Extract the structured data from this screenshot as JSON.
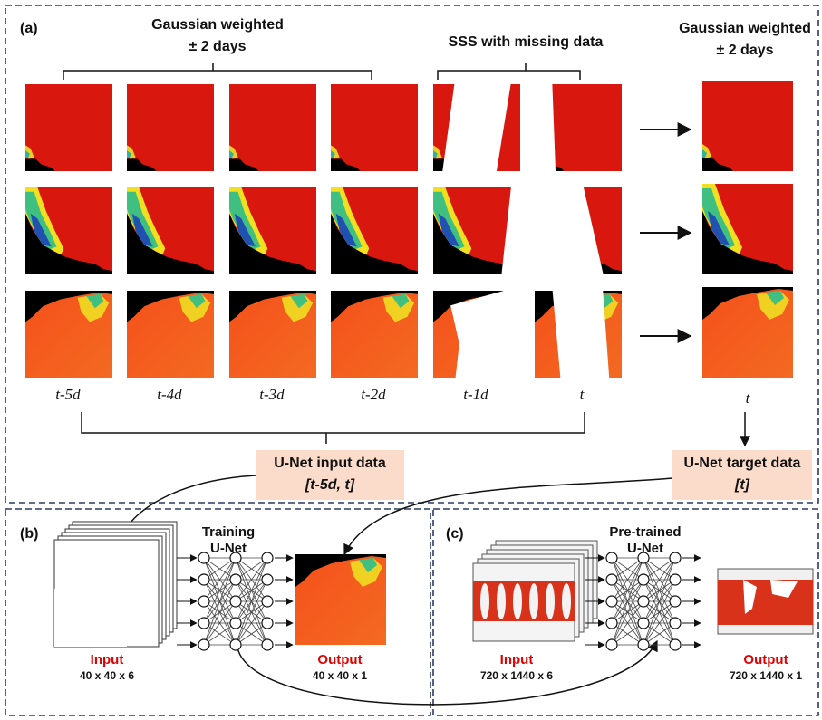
{
  "panel_a": {
    "label": "(a)",
    "left_header": {
      "line1": "Gaussian weighted",
      "line2": "± 2 days"
    },
    "middle_header": "SSS with missing data",
    "right_header": {
      "line1": "Gaussian weighted",
      "line2": "± 2 days"
    },
    "time_labels": [
      "t-5d",
      "t-4d",
      "t-3d",
      "t-2d",
      "t-1d",
      "t"
    ],
    "target_time_label": "t",
    "input_box": {
      "title": "U-Net input data",
      "range": "[t-5d, t]"
    },
    "target_box": {
      "title": "U-Net target data",
      "range": "[t]"
    }
  },
  "panel_b": {
    "label": "(b)",
    "network": {
      "line1": "Training",
      "line2": "U-Net"
    },
    "input": {
      "title": "Input",
      "size": "40 x 40 x 6"
    },
    "output": {
      "title": "Output",
      "size": "40 x  40 x 1"
    }
  },
  "panel_c": {
    "label": "(c)",
    "network": {
      "line1": "Pre-trained",
      "line2": "U-Net"
    },
    "input": {
      "title": "Input",
      "size": "720 x 1440 x 6"
    },
    "output": {
      "title": "Output",
      "size": "720 x 1440 x 1"
    }
  }
}
